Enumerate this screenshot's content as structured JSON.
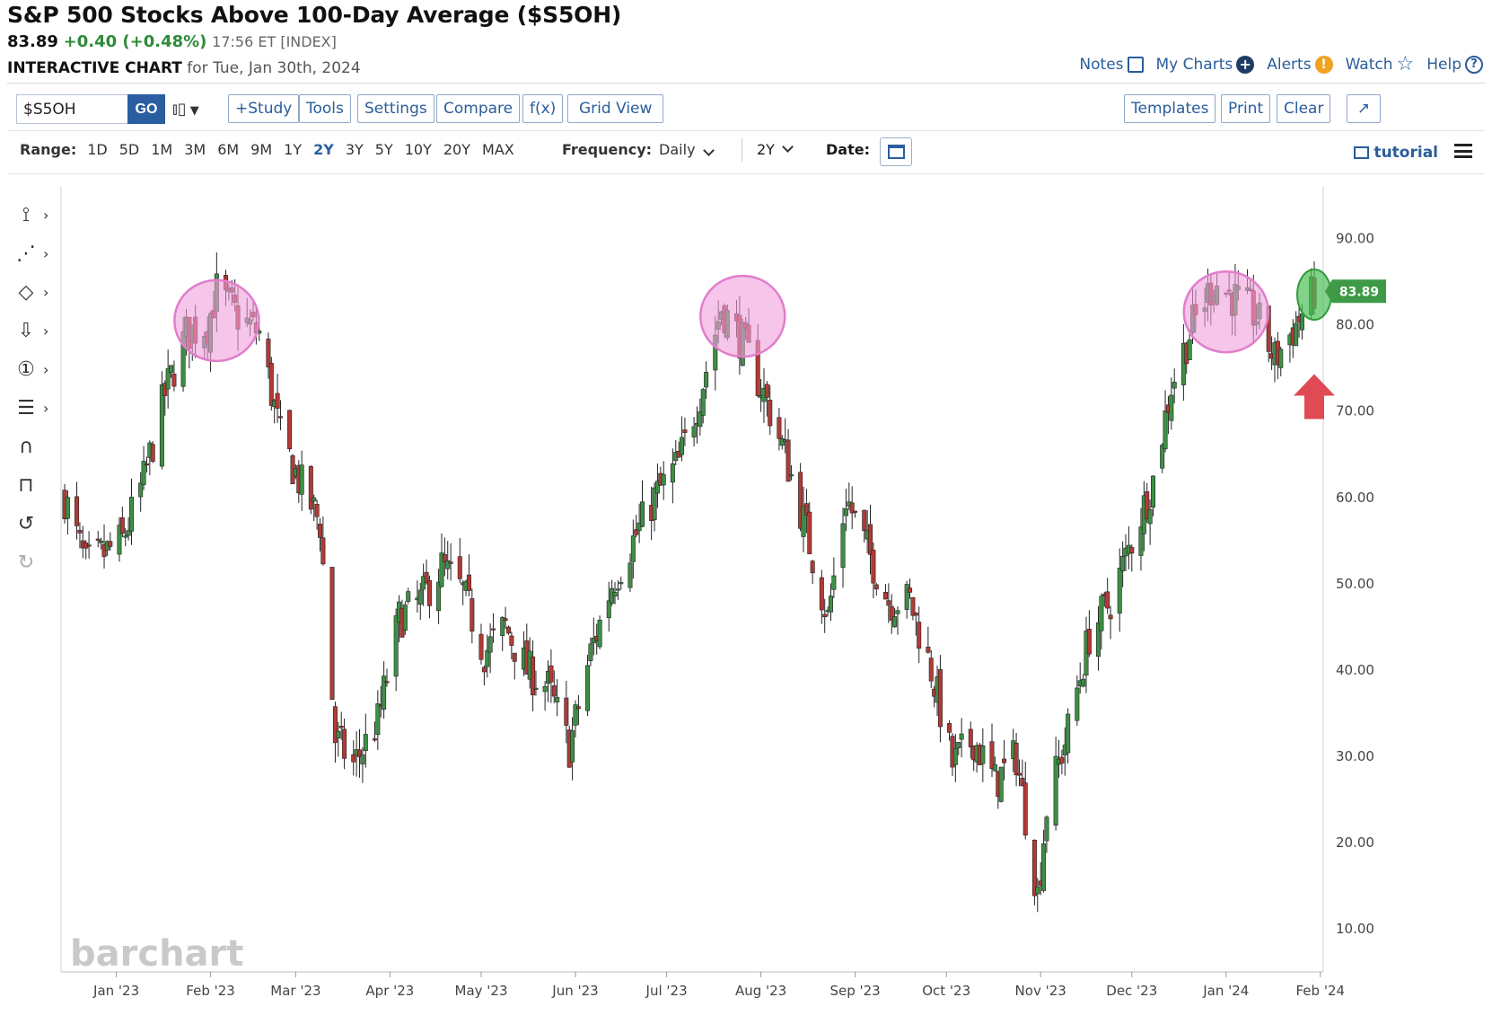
{
  "header": {
    "title": "S&P 500 Stocks Above 100-Day Average ($S5OH)",
    "last": "83.89",
    "change": "+0.40 (+0.48%)",
    "meta": "17:56 ET [INDEX]",
    "interactive_label": "INTERACTIVE CHART",
    "date_text": "for Tue, Jan 30th, 2024"
  },
  "toplinks": [
    {
      "label": "Notes",
      "icon": "edit-icon"
    },
    {
      "label": "My Charts",
      "icon": "plus-circle-icon"
    },
    {
      "label": "Alerts",
      "icon": "alert-icon"
    },
    {
      "label": "Watch",
      "icon": "star-icon"
    },
    {
      "label": "Help",
      "icon": "help-icon"
    }
  ],
  "toolbar": {
    "symbol_value": "$S5OH",
    "go_label": "GO",
    "left_buttons": [
      "+Study",
      "Tools",
      "Settings",
      "Compare",
      "f(x)",
      "Grid View"
    ],
    "right_buttons": [
      "Templates",
      "Print",
      "Clear"
    ],
    "expand_glyph": "↗"
  },
  "rangebar": {
    "label": "Range:",
    "ranges": [
      "1D",
      "5D",
      "1M",
      "3M",
      "6M",
      "9M",
      "1Y",
      "2Y",
      "3Y",
      "5Y",
      "10Y",
      "20Y",
      "MAX"
    ],
    "active": "2Y",
    "frequency_label": "Frequency:",
    "frequency_value": "Daily",
    "period_value": "2Y",
    "date_label": "Date:",
    "tutorial_label": "tutorial"
  },
  "watermark": "barchart",
  "colors": {
    "up": "#3e8f45",
    "down": "#b23a35",
    "highlight_pink": "#f0a0dc",
    "highlight_green": "#4fbf57",
    "last_badge": "#3e9a47",
    "arrow": "#e04a55",
    "link": "#2a5d9b"
  },
  "chart_data": {
    "type": "candlestick",
    "title": "S&P 500 Stocks Above 100-Day Average ($S5OH)",
    "frequency": "Daily",
    "ylim": [
      5,
      96
    ],
    "yticks": [
      "90.00",
      "80.00",
      "70.00",
      "60.00",
      "50.00",
      "40.00",
      "30.00",
      "20.00",
      "10.00"
    ],
    "x_labels": [
      "Jan '23",
      "Feb '23",
      "Mar '23",
      "Apr '23",
      "May '23",
      "Jun '23",
      "Jul '23",
      "Aug '23",
      "Sep '23",
      "Oct '23",
      "Nov '23",
      "Dec '23",
      "Jan '24",
      "Feb '24"
    ],
    "last_value": "83.89",
    "path": [
      [
        "2022-12-15",
        60
      ],
      [
        "2022-12-22",
        52
      ],
      [
        "2023-01-03",
        55
      ],
      [
        "2023-01-10",
        62
      ],
      [
        "2023-01-17",
        72
      ],
      [
        "2023-01-24",
        79
      ],
      [
        "2023-01-31",
        80
      ],
      [
        "2023-02-03",
        84
      ],
      [
        "2023-02-10",
        81
      ],
      [
        "2023-02-17",
        79
      ],
      [
        "2023-02-24",
        67
      ],
      [
        "2023-03-02",
        62
      ],
      [
        "2023-03-09",
        57
      ],
      [
        "2023-03-14",
        32
      ],
      [
        "2023-03-20",
        29
      ],
      [
        "2023-03-28",
        34
      ],
      [
        "2023-04-04",
        46
      ],
      [
        "2023-04-11",
        48
      ],
      [
        "2023-04-18",
        52
      ],
      [
        "2023-04-25",
        49
      ],
      [
        "2023-05-02",
        42
      ],
      [
        "2023-05-09",
        45
      ],
      [
        "2023-05-16",
        40
      ],
      [
        "2023-05-23",
        38
      ],
      [
        "2023-05-30",
        31
      ],
      [
        "2023-06-06",
        42
      ],
      [
        "2023-06-13",
        50
      ],
      [
        "2023-06-20",
        55
      ],
      [
        "2023-06-27",
        60
      ],
      [
        "2023-07-05",
        64
      ],
      [
        "2023-07-12",
        72
      ],
      [
        "2023-07-19",
        82
      ],
      [
        "2023-07-26",
        78
      ],
      [
        "2023-08-02",
        72
      ],
      [
        "2023-08-09",
        65
      ],
      [
        "2023-08-16",
        56
      ],
      [
        "2023-08-23",
        46
      ],
      [
        "2023-08-29",
        60
      ],
      [
        "2023-09-05",
        54
      ],
      [
        "2023-09-12",
        48
      ],
      [
        "2023-09-19",
        48
      ],
      [
        "2023-09-26",
        40
      ],
      [
        "2023-10-03",
        29
      ],
      [
        "2023-10-10",
        32
      ],
      [
        "2023-10-17",
        27
      ],
      [
        "2023-10-24",
        30
      ],
      [
        "2023-10-31",
        14
      ],
      [
        "2023-11-03",
        24
      ],
      [
        "2023-11-10",
        33
      ],
      [
        "2023-11-17",
        44
      ],
      [
        "2023-11-24",
        48
      ],
      [
        "2023-12-01",
        55
      ],
      [
        "2023-12-08",
        62
      ],
      [
        "2023-12-14",
        73
      ],
      [
        "2023-12-21",
        80
      ],
      [
        "2023-12-28",
        85
      ],
      [
        "2024-01-04",
        83
      ],
      [
        "2024-01-11",
        81
      ],
      [
        "2024-01-17",
        76
      ],
      [
        "2024-01-24",
        80
      ],
      [
        "2024-01-30",
        83.89
      ]
    ],
    "annotations": [
      {
        "type": "circle",
        "color": "pink",
        "date": "2023-02-03",
        "value": 80.5
      },
      {
        "type": "circle",
        "color": "pink",
        "date": "2023-07-26",
        "value": 81
      },
      {
        "type": "circle",
        "color": "pink",
        "date": "2024-01-01",
        "value": 81.5
      },
      {
        "type": "circle",
        "color": "green",
        "date": "2024-01-30",
        "value": 83.5
      },
      {
        "type": "arrow-up",
        "color": "red",
        "date": "2024-01-30",
        "value": 72
      }
    ]
  }
}
